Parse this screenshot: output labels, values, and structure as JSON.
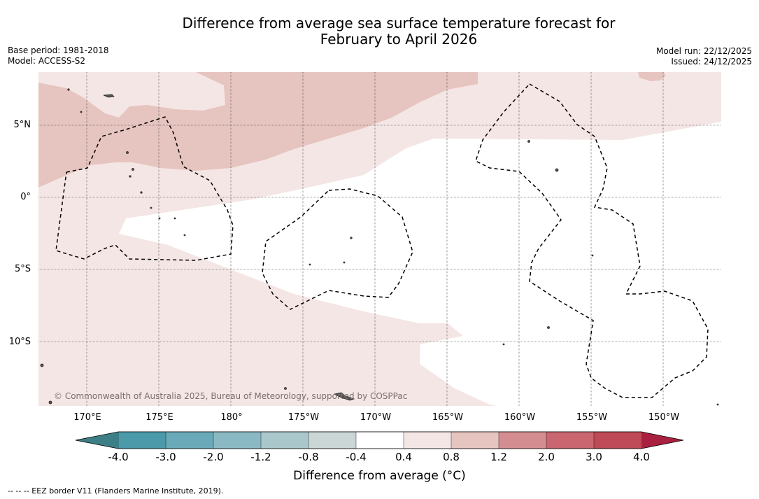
{
  "title": {
    "line1": "Difference from average sea surface temperature forecast for",
    "line2": "February to April 2026"
  },
  "meta": {
    "base_period": "Base period: 1981-2018",
    "model": "Model: ACCESS-S2",
    "model_run": "Model run: 22/12/2025",
    "issued": "Issued: 24/12/2025"
  },
  "map": {
    "lat_labels": [
      "5°N",
      "0°",
      "5°S",
      "10°S"
    ],
    "lon_labels": [
      "170°E",
      "175°E",
      "180°",
      "175°W",
      "170°W",
      "165°W",
      "160°W",
      "155°W",
      "150°W"
    ],
    "copyright": "© Commonwealth of Australia 2025, Bureau of Meteorology, supported by COSPPac",
    "colors": {
      "band_0_4_to_0_8": "#f4e6e4",
      "band_0_8_to_1_2": "#e6c4bf",
      "land_outline": "#222222",
      "eez_border": "#000000"
    }
  },
  "colorbar": {
    "label": "Difference from average (°C)",
    "tick_labels": [
      "-4.0",
      "-3.0",
      "-2.0",
      "-1.2",
      "-0.8",
      "-0.4",
      "0.4",
      "0.8",
      "1.2",
      "2.0",
      "3.0",
      "4.0"
    ],
    "colors": [
      "#4a9aaa",
      "#6aaab8",
      "#8ab9c3",
      "#aac8cc",
      "#cbd6d6",
      "#ffffff",
      "#f4e6e4",
      "#e6c4bf",
      "#d48e92",
      "#c96670",
      "#bd4a56"
    ],
    "under_color": "#3d7f86",
    "over_color": "#aa2040"
  },
  "footer": "--  --  -- EEZ border V11 (Flanders Marine Institute, 2019)."
}
